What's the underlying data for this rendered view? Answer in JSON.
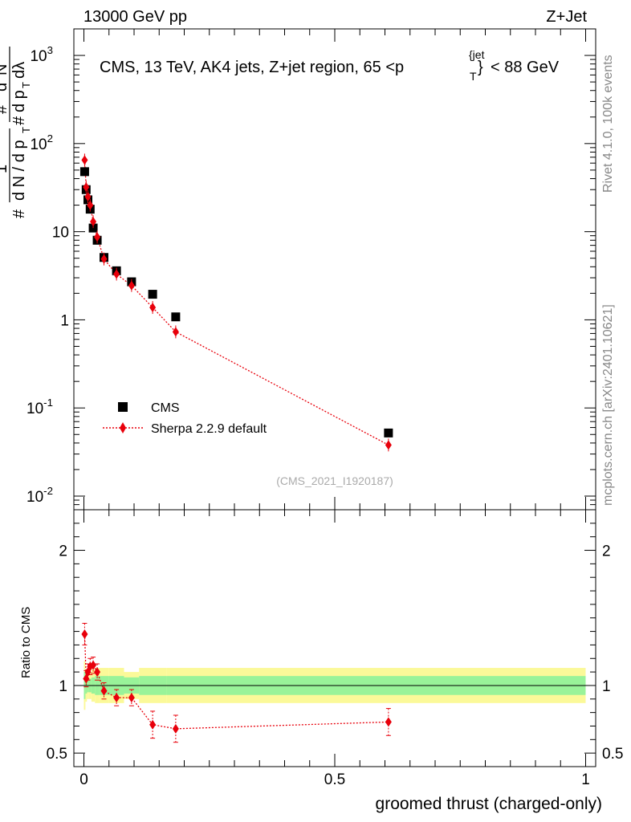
{
  "header": {
    "energy_label": "13000 GeV pp",
    "process_label": "Z+Jet",
    "plot_title_main": "CMS, 13 TeV, AK4 jets, Z+jet region, 65 <p",
    "plot_title_sub": "T",
    "plot_title_sup": "{jet",
    "plot_title_sup_close": "}",
    "plot_title_tail": "< 88 GeV",
    "analysis_id": "(CMS_2021_I1920187)",
    "side_label_rivet": "Rivet 4.1.0,  100k events",
    "side_label_site": "mcplots.cern.ch [arXiv:2401.10621]"
  },
  "legend": {
    "data_label": "CMS",
    "mc_label": "Sherpa 2.2.9 default"
  },
  "colors": {
    "data": "#000000",
    "mc": "#e8000b",
    "band_inner": "#99f399",
    "band_outer": "#fbf999"
  },
  "chart_data": [
    {
      "type": "scatter",
      "panel": "main",
      "yscale": "log",
      "ylabel": "# 1/(dN / d p_T) # d^2N/(d p_T dλ)",
      "ylim": [
        0.007,
        2000
      ],
      "xlim": [
        -0.02,
        1.02
      ],
      "y_tick_labels": [
        "10^-2",
        "10^-1",
        "1",
        "10",
        "10^2",
        "10^3"
      ],
      "series": [
        {
          "name": "CMS",
          "x": [
            0.0015,
            0.0045,
            0.008,
            0.0125,
            0.0185,
            0.0265,
            0.04,
            0.065,
            0.095,
            0.137,
            0.183,
            0.607
          ],
          "y": [
            48,
            30,
            23,
            18,
            11,
            8,
            5.1,
            3.6,
            2.7,
            1.95,
            1.08,
            0.052
          ]
        },
        {
          "name": "Sherpa 2.2.9 default",
          "x": [
            0.0015,
            0.0045,
            0.008,
            0.0125,
            0.0185,
            0.0265,
            0.04,
            0.065,
            0.095,
            0.137,
            0.183,
            0.607
          ],
          "y": [
            65,
            32,
            25,
            20,
            13,
            8.7,
            4.9,
            3.3,
            2.45,
            1.38,
            0.73,
            0.038
          ]
        }
      ]
    },
    {
      "type": "line",
      "panel": "ratio",
      "ylabel": "Ratio to CMS",
      "xlabel": "groomed thrust (charged-only)",
      "ylim": [
        0.4,
        2.3
      ],
      "xlim": [
        -0.02,
        1.02
      ],
      "x_tick_labels": [
        "0",
        "0.5",
        "1"
      ],
      "y_tick_labels": [
        "0.5",
        "1",
        "2"
      ],
      "series": [
        {
          "name": "Sherpa 2.2.9 default / CMS",
          "x": [
            0.0015,
            0.0045,
            0.008,
            0.0125,
            0.0185,
            0.0265,
            0.04,
            0.065,
            0.095,
            0.137,
            0.183,
            0.607
          ],
          "y": [
            1.38,
            1.05,
            1.1,
            1.14,
            1.15,
            1.1,
            0.96,
            0.91,
            0.91,
            0.71,
            0.68,
            0.73
          ]
        }
      ],
      "bands": {
        "edges": [
          0.0,
          0.003,
          0.006,
          0.01,
          0.015,
          0.022,
          0.031,
          0.049,
          0.08,
          0.11,
          0.165,
          0.2,
          1.0
        ],
        "inner": [
          0.1,
          0.06,
          0.05,
          0.05,
          0.06,
          0.07,
          0.07,
          0.07,
          0.06,
          0.07,
          0.07,
          0.07
        ],
        "outer": [
          0.18,
          0.12,
          0.1,
          0.1,
          0.12,
          0.13,
          0.13,
          0.13,
          0.1,
          0.13,
          0.13,
          0.13
        ]
      }
    }
  ]
}
